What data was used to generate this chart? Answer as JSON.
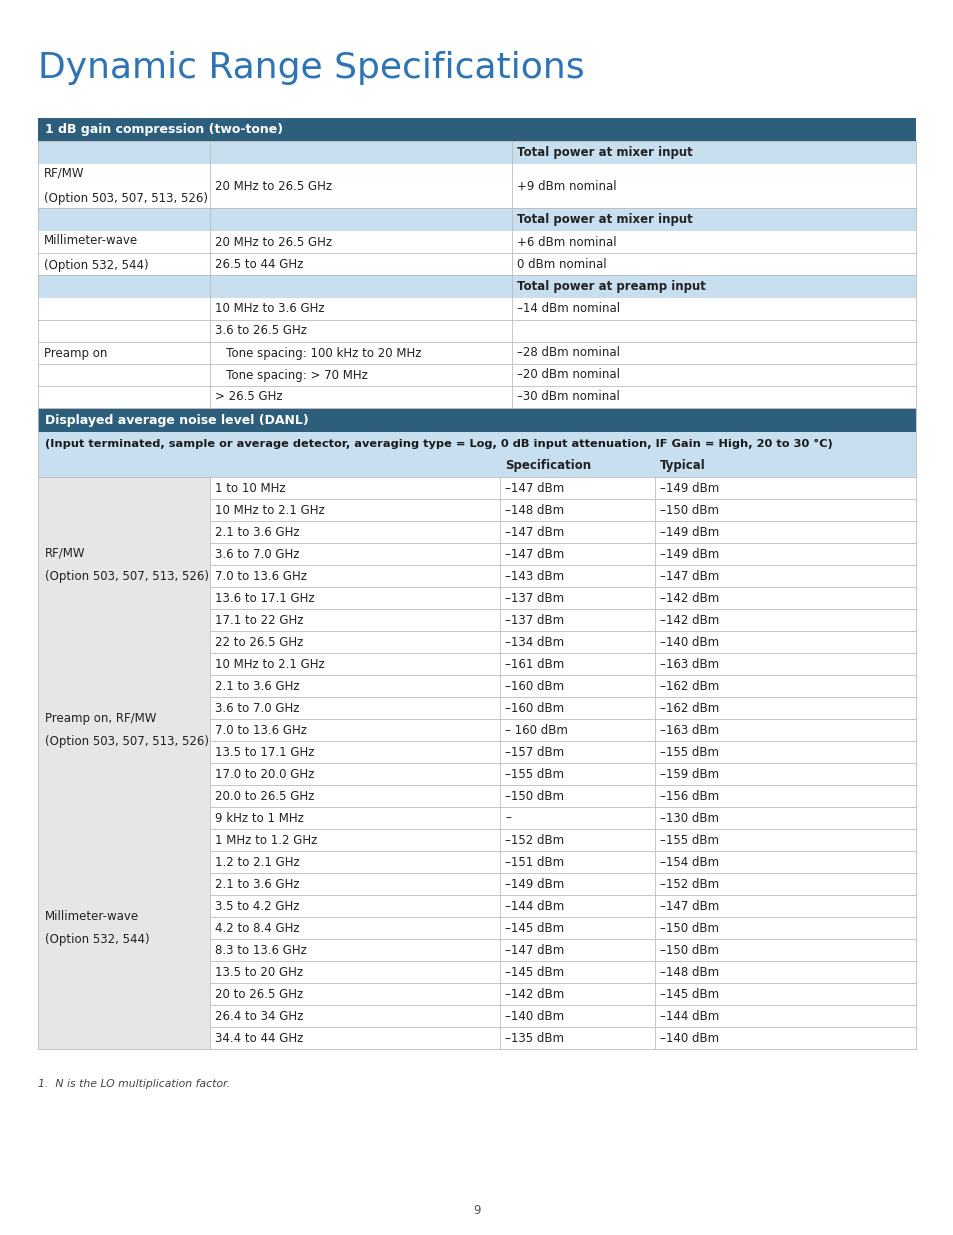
{
  "title": "Dynamic Range Specifications",
  "title_color": "#2e74b5",
  "title_fontsize": 26,
  "page_number": "9",
  "footnote": "1.  N is the LO multiplication factor.",
  "bg_header_dark": "#2d5f7c",
  "bg_header_light": "#c8dff0",
  "bg_white": "#ffffff",
  "text_dark": "#222222",
  "text_white": "#ffffff",
  "line_color": "#bbbbbb",
  "section1_header": "1 dB gain compression (two-tone)",
  "section2_header": "Displayed average noise level (DANL)",
  "section2_subheader": "(Input terminated, sample or average detector, averaging type = Log, 0 dB input attenuation, IF Gain = High, 20 to 30 °C)",
  "s1_rows": [
    {
      "type": "subheader",
      "c1": "",
      "c2": "",
      "c3": "Total power at mixer input"
    },
    {
      "type": "data",
      "c1": "RF/MW\n(Option 503, 507, 513, 526)",
      "c2": "20 MHz to 26.5 GHz",
      "c3": "+9 dBm nominal"
    },
    {
      "type": "subheader",
      "c1": "",
      "c2": "",
      "c3": "Total power at mixer input"
    },
    {
      "type": "data",
      "c1": "Millimeter-wave\n(Option 532, 544)",
      "c2": "20 MHz to 26.5 GHz",
      "c3": "+6 dBm nominal"
    },
    {
      "type": "data",
      "c1": "",
      "c2": "26.5 to 44 GHz",
      "c3": "0 dBm nominal"
    },
    {
      "type": "subheader",
      "c1": "",
      "c2": "",
      "c3": "Total power at preamp input"
    },
    {
      "type": "data",
      "c1": "Preamp on",
      "c2": "10 MHz to 3.6 GHz",
      "c3": "–14 dBm nominal"
    },
    {
      "type": "data",
      "c1": "",
      "c2": "3.6 to 26.5 GHz",
      "c3": ""
    },
    {
      "type": "data",
      "c1": "",
      "c2": "   Tone spacing: 100 kHz to 20 MHz",
      "c3": "–28 dBm nominal"
    },
    {
      "type": "data",
      "c1": "",
      "c2": "   Tone spacing: > 70 MHz",
      "c3": "–20 dBm nominal"
    },
    {
      "type": "data",
      "c1": "",
      "c2": "> 26.5 GHz",
      "c3": "–30 dBm nominal"
    }
  ],
  "s1_groups": [
    {
      "rows": [
        1,
        1
      ],
      "label": "RF/MW\n(Option 503, 507, 513, 526)"
    },
    {
      "rows": [
        3,
        4
      ],
      "label": "Millimeter-wave\n(Option 532, 544)"
    },
    {
      "rows": [
        6,
        10
      ],
      "label": "Preamp on"
    }
  ],
  "s2_col_header": {
    "c1": "",
    "c2": "",
    "c3": "Specification",
    "c4": "Typical"
  },
  "s2_rows": [
    {
      "c1": "RF/MW\n(Option 503, 507, 513, 526)",
      "c2": "1 to 10 MHz",
      "c3": "–147 dBm",
      "c4": "–149 dBm"
    },
    {
      "c1": "",
      "c2": "10 MHz to 2.1 GHz",
      "c3": "–148 dBm",
      "c4": "–150 dBm"
    },
    {
      "c1": "",
      "c2": "2.1 to 3.6 GHz",
      "c3": "–147 dBm",
      "c4": "–149 dBm"
    },
    {
      "c1": "",
      "c2": "3.6 to 7.0 GHz",
      "c3": "–147 dBm",
      "c4": "–149 dBm"
    },
    {
      "c1": "",
      "c2": "7.0 to 13.6 GHz",
      "c3": "–143 dBm",
      "c4": "–147 dBm"
    },
    {
      "c1": "",
      "c2": "13.6 to 17.1 GHz",
      "c3": "–137 dBm",
      "c4": "–142 dBm"
    },
    {
      "c1": "",
      "c2": "17.1 to 22 GHz",
      "c3": "–137 dBm",
      "c4": "–142 dBm"
    },
    {
      "c1": "",
      "c2": "22 to 26.5 GHz",
      "c3": "–134 dBm",
      "c4": "–140 dBm"
    },
    {
      "c1": "Preamp on, RF/MW\n(Option 503, 507, 513, 526)",
      "c2": "10 MHz to 2.1 GHz",
      "c3": "–161 dBm",
      "c4": "–163 dBm"
    },
    {
      "c1": "",
      "c2": "2.1 to 3.6 GHz",
      "c3": "–160 dBm",
      "c4": "–162 dBm"
    },
    {
      "c1": "",
      "c2": "3.6 to 7.0 GHz",
      "c3": "–160 dBm",
      "c4": "–162 dBm"
    },
    {
      "c1": "",
      "c2": "7.0 to 13.6 GHz",
      "c3": "– 160 dBm",
      "c4": "–163 dBm"
    },
    {
      "c1": "",
      "c2": "13.5 to 17.1 GHz",
      "c3": "–157 dBm",
      "c4": "–155 dBm"
    },
    {
      "c1": "",
      "c2": "17.0 to 20.0 GHz",
      "c3": "–155 dBm",
      "c4": "–159 dBm"
    },
    {
      "c1": "",
      "c2": "20.0 to 26.5 GHz",
      "c3": "–150 dBm",
      "c4": "–156 dBm"
    },
    {
      "c1": "Millimeter-wave\n(Option 532, 544)",
      "c2": "9 kHz to 1 MHz",
      "c3": "–",
      "c4": "–130 dBm"
    },
    {
      "c1": "",
      "c2": "1 MHz to 1.2 GHz",
      "c3": "–152 dBm",
      "c4": "–155 dBm"
    },
    {
      "c1": "",
      "c2": "1.2 to 2.1 GHz",
      "c3": "–151 dBm",
      "c4": "–154 dBm"
    },
    {
      "c1": "",
      "c2": "2.1 to 3.6 GHz",
      "c3": "–149 dBm",
      "c4": "–152 dBm"
    },
    {
      "c1": "",
      "c2": "3.5 to 4.2 GHz",
      "c3": "–144 dBm",
      "c4": "–147 dBm"
    },
    {
      "c1": "",
      "c2": "4.2 to 8.4 GHz",
      "c3": "–145 dBm",
      "c4": "–150 dBm"
    },
    {
      "c1": "",
      "c2": "8.3 to 13.6 GHz",
      "c3": "–147 dBm",
      "c4": "–150 dBm"
    },
    {
      "c1": "",
      "c2": "13.5 to 20 GHz",
      "c3": "–145 dBm",
      "c4": "–148 dBm"
    },
    {
      "c1": "",
      "c2": "20 to 26.5 GHz",
      "c3": "–142 dBm",
      "c4": "–145 dBm"
    },
    {
      "c1": "",
      "c2": "26.4 to 34 GHz",
      "c3": "–140 dBm",
      "c4": "–144 dBm"
    },
    {
      "c1": "",
      "c2": "34.4 to 44 GHz",
      "c3": "–135 dBm",
      "c4": "–140 dBm"
    }
  ],
  "s2_groups": [
    {
      "rows": [
        0,
        7
      ],
      "label": "RF/MW\n(Option 503, 507, 513, 526)"
    },
    {
      "rows": [
        8,
        14
      ],
      "label": "Preamp on, RF/MW\n(Option 503, 507, 513, 526)"
    },
    {
      "rows": [
        15,
        25
      ],
      "label": "Millimeter-wave\n(Option 532, 544)"
    }
  ]
}
